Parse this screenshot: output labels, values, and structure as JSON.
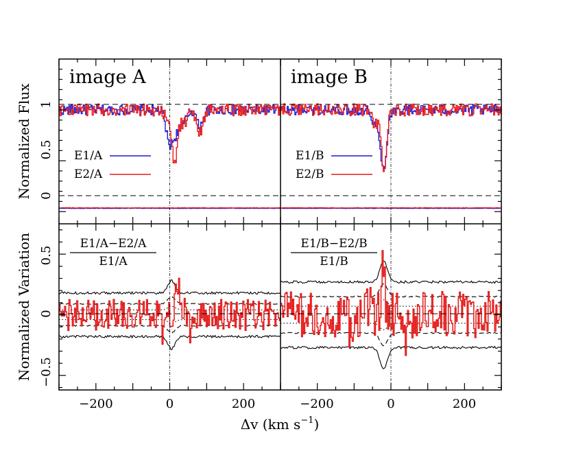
{
  "chart_data": {
    "type": "line",
    "xlabel": "Δv (km s",
    "xlabel_sup": "−1",
    "xlabel_close": ")",
    "xlim": [
      -300,
      300
    ],
    "xticks": [
      -200,
      0,
      200
    ],
    "xtick_labels": [
      "−200",
      "0",
      "200"
    ],
    "top_ylabel": "Normalized Flux",
    "top_ylim": [
      -0.12,
      1.5
    ],
    "top_yticks": [
      0,
      0.5,
      1
    ],
    "top_ytick_labels": [
      "0",
      "0.5",
      "1"
    ],
    "bottom_ylabel": "Normalized Variation",
    "bottom_ylim": [
      -0.62,
      0.75
    ],
    "bottom_yticks": [
      -0.5,
      0,
      0.5
    ],
    "bottom_ytick_labels": [
      "−0.5",
      "0",
      "0.5"
    ],
    "colors": {
      "e1": "#1a1adb",
      "e2": "#e61a1a",
      "var": "#e61a1a",
      "envelope": "#000000"
    },
    "panels": [
      {
        "id": "A",
        "title": "image A",
        "legend": [
          "E1/A",
          "E2/A"
        ],
        "fraction_numerator": "E1/A−E2/A",
        "fraction_denominator": "E1/A",
        "flux_e1_absorptions": [
          {
            "v": -5,
            "depth": 0.2,
            "width": 8
          },
          {
            "v": 10,
            "depth": 0.25,
            "width": 12
          },
          {
            "v": 35,
            "depth": 0.12,
            "width": 10
          },
          {
            "v": 80,
            "depth": 0.17,
            "width": 8
          }
        ],
        "flux_e2_absorptions": [
          {
            "v": -5,
            "depth": 0.13,
            "width": 8
          },
          {
            "v": 12,
            "depth": 0.5,
            "width": 7
          },
          {
            "v": 35,
            "depth": 0.14,
            "width": 10
          },
          {
            "v": 80,
            "depth": 0.22,
            "width": 8
          }
        ],
        "variation_spikes": [
          {
            "v": 18,
            "amp": 0.28,
            "width": 4
          },
          {
            "v": 28,
            "amp": 0.12,
            "width": 5
          },
          {
            "v": 55,
            "amp": -0.15,
            "width": 5
          },
          {
            "v": -20,
            "amp": -0.12,
            "width": 5
          }
        ],
        "envelope_outer": 0.18,
        "envelope_mid": 0.09,
        "envelope_inner": 0.04,
        "outer_bump": 0.1
      },
      {
        "id": "B",
        "title": "image B",
        "legend": [
          "E1/B",
          "E2/B"
        ],
        "fraction_numerator": "E1/B−E2/B",
        "fraction_denominator": "E1/B",
        "flux_e1_absorptions": [
          {
            "v": -22,
            "depth": 0.57,
            "width": 9
          },
          {
            "v": -45,
            "depth": 0.12,
            "width": 8
          }
        ],
        "flux_e2_absorptions": [
          {
            "v": -20,
            "depth": 0.65,
            "width": 7
          },
          {
            "v": -45,
            "depth": 0.15,
            "width": 8
          }
        ],
        "variation_spikes": [
          {
            "v": -22,
            "amp": 0.5,
            "width": 4
          },
          {
            "v": -60,
            "amp": 0.12,
            "width": 5
          },
          {
            "v": -110,
            "amp": -0.18,
            "width": 5
          },
          {
            "v": 40,
            "amp": -0.15,
            "width": 5
          }
        ],
        "envelope_outer": 0.27,
        "envelope_mid": 0.15,
        "envelope_inner": 0.07,
        "outer_bump": 0.18
      }
    ]
  }
}
